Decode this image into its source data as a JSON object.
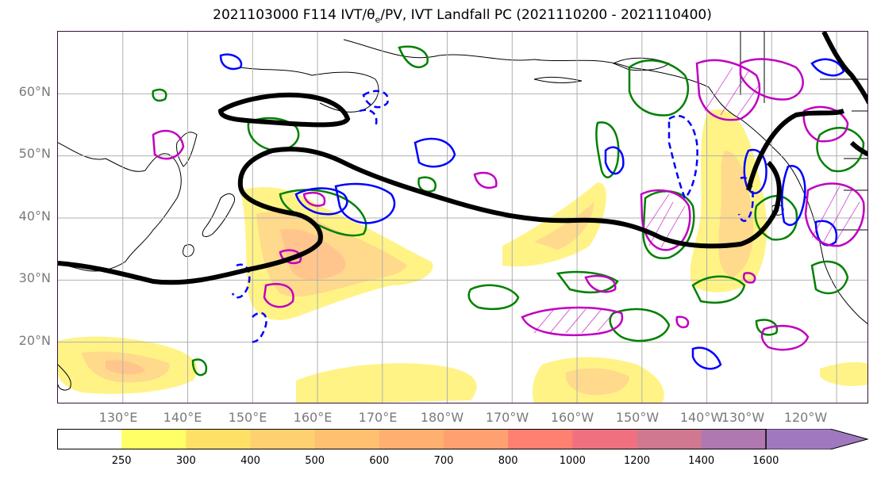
{
  "title": {
    "prefix": "2021103000 F114 IVT/θ",
    "subscript": "e",
    "suffix": "/PV, IVT Landfall PC (2021110200 - 2021110400)"
  },
  "map": {
    "lon_range": [
      120,
      245
    ],
    "lat_range": [
      10,
      70
    ],
    "lat_labels": [
      {
        "lat": 60,
        "text": "60°N"
      },
      {
        "lat": 50,
        "text": "50°N"
      },
      {
        "lat": 40,
        "text": "40°N"
      },
      {
        "lat": 30,
        "text": "30°N"
      },
      {
        "lat": 20,
        "text": "20°N"
      }
    ],
    "lon_labels": [
      {
        "lon": 130,
        "text": "130°E"
      },
      {
        "lon": 140,
        "text": "140°E"
      },
      {
        "lon": 150,
        "text": "150°E"
      },
      {
        "lon": 160,
        "text": "160°E"
      },
      {
        "lon": 170,
        "text": "170°E"
      },
      {
        "lon": 180,
        "text": "180°W"
      },
      {
        "lon": 190,
        "text": "170°W"
      },
      {
        "lon": 200,
        "text": "160°W"
      },
      {
        "lon": 210,
        "text": "150°W"
      },
      {
        "lon": 220,
        "text": "140°W"
      },
      {
        "lon": 230,
        "text": "130°W"
      },
      {
        "lon": 240,
        "text": "120°W"
      }
    ],
    "gridlines": true,
    "colors": {
      "theta_e_contour": "#008000",
      "pv_contour": "#0000ff",
      "landfall_pc": "#c000c0",
      "ivt_axis": "#000000",
      "gridline": "#b0b0b0"
    }
  },
  "colorbar": {
    "levels": [
      "250",
      "300",
      "400",
      "500",
      "600",
      "700",
      "800",
      "1000",
      "1200",
      "1400",
      "1600"
    ],
    "colors": [
      "#ffffff",
      "#ffff66",
      "#ffe066",
      "#ffd070",
      "#ffc070",
      "#ffb070",
      "#ffa070",
      "#ff8070",
      "#f07080",
      "#d07890",
      "#b078b0",
      "#a078c0"
    ],
    "extend": "max"
  }
}
